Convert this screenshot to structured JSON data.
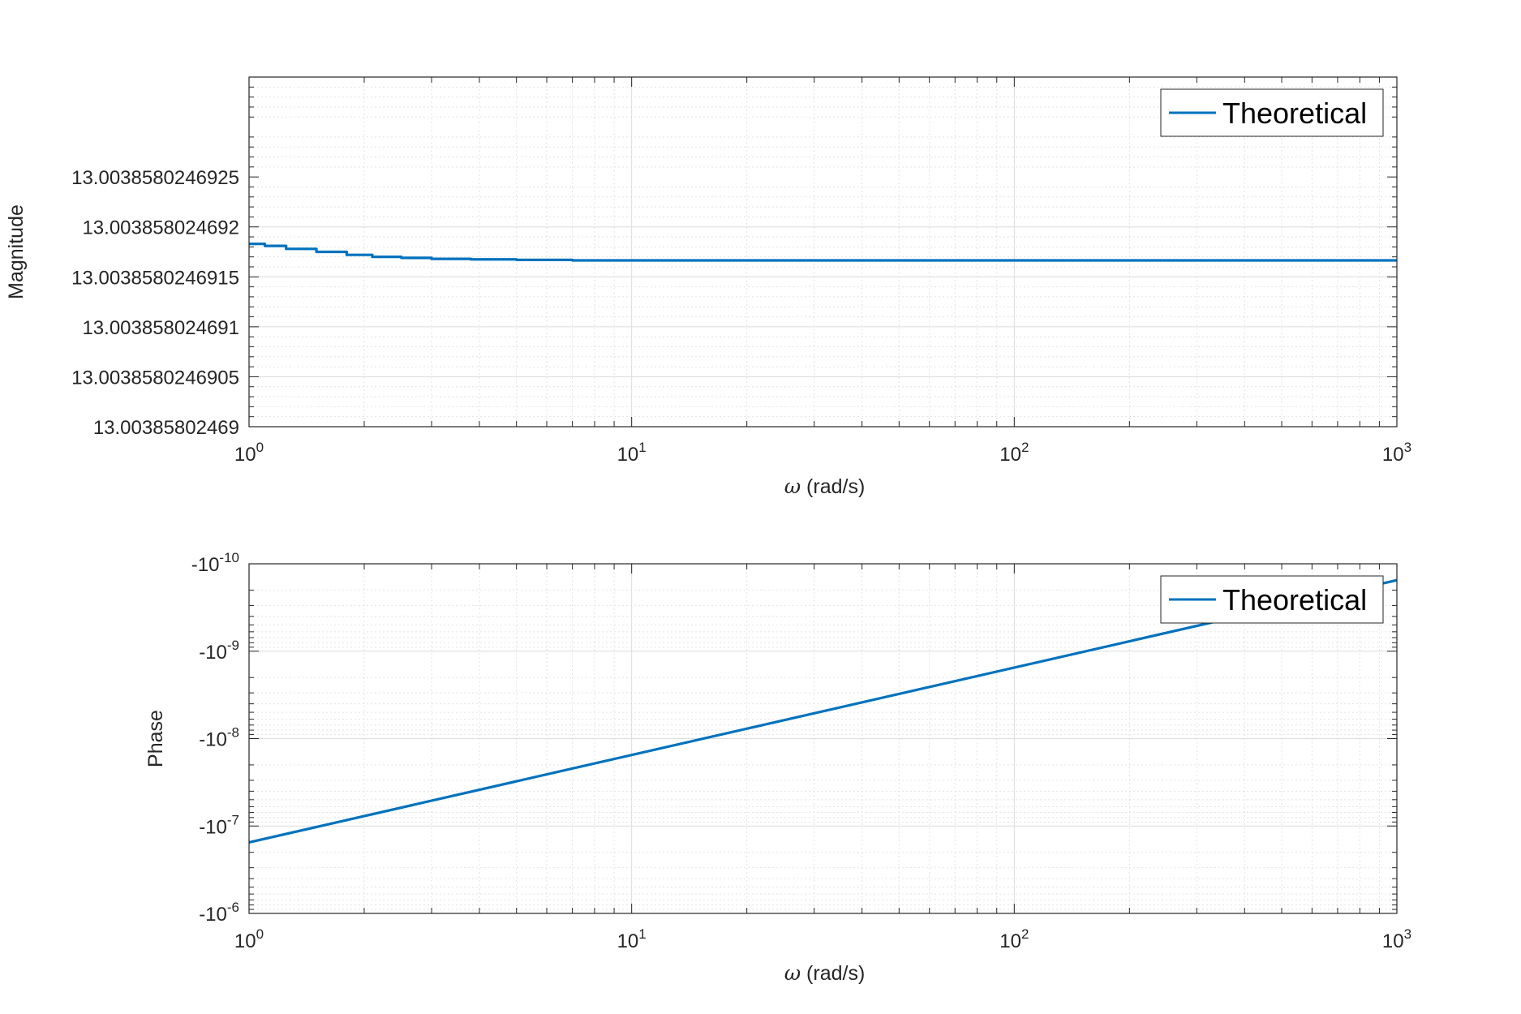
{
  "chart_data": [
    {
      "type": "line",
      "xlabel_symbol": "ω",
      "xlabel_unit": " (rad/s)",
      "ylabel": "Magnitude",
      "xscale": "log",
      "xlim": [
        1,
        1000
      ],
      "x_ticks": [
        {
          "base": "10",
          "exp": "0"
        },
        {
          "base": "10",
          "exp": "1"
        },
        {
          "base": "10",
          "exp": "2"
        },
        {
          "base": "10",
          "exp": "3"
        }
      ],
      "y_ticks": [
        "13.0038580246925",
        "13.003858024692",
        "13.0038580246915",
        "13.003858024691",
        "13.0038580246905",
        "13.00385802469"
      ],
      "ylim_offset_from_13.00385802469": [
        0,
        3.5e-12
      ],
      "grid": true,
      "minor_grid": true,
      "legend": {
        "position": "top-right",
        "entries": [
          "Theoretical"
        ]
      },
      "series": [
        {
          "name": "Theoretical",
          "color": "#0072BD",
          "x": [
            1,
            1.1,
            1.25,
            1.5,
            1.8,
            2.1,
            2.5,
            3.0,
            3.8,
            5.0,
            7.0,
            10,
            100,
            1000
          ],
          "y_offset_from_13.00385802469": [
            1.83e-12,
            1.81e-12,
            1.78e-12,
            1.75e-12,
            1.72e-12,
            1.7e-12,
            1.69e-12,
            1.68e-12,
            1.675e-12,
            1.67e-12,
            1.665e-12,
            1.665e-12,
            1.665e-12,
            1.665e-12
          ]
        }
      ]
    },
    {
      "type": "line",
      "xlabel_symbol": "ω",
      "xlabel_unit": " (rad/s)",
      "ylabel": "Phase",
      "xscale": "log",
      "yscale": "log (negative values)",
      "xlim": [
        1,
        1000
      ],
      "x_ticks": [
        {
          "base": "10",
          "exp": "0"
        },
        {
          "base": "10",
          "exp": "1"
        },
        {
          "base": "10",
          "exp": "2"
        },
        {
          "base": "10",
          "exp": "3"
        }
      ],
      "y_ticks": [
        {
          "base": "-10",
          "exp": "-10"
        },
        {
          "base": "-10",
          "exp": "-9"
        },
        {
          "base": "-10",
          "exp": "-8"
        },
        {
          "base": "-10",
          "exp": "-7"
        },
        {
          "base": "-10",
          "exp": "-6"
        }
      ],
      "ylim": [
        -1e-06,
        -1e-10
      ],
      "grid": true,
      "minor_grid": true,
      "legend": {
        "position": "top-right",
        "entries": [
          "Theoretical"
        ]
      },
      "series": [
        {
          "name": "Theoretical",
          "color": "#0072BD",
          "x": [
            1,
            1000
          ],
          "y": [
            -1.54e-07,
            -1.54e-10
          ]
        }
      ]
    }
  ]
}
